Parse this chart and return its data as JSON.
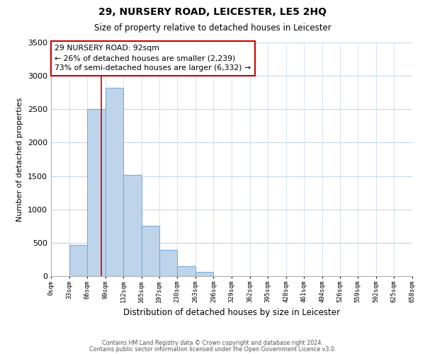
{
  "title": "29, NURSERY ROAD, LEICESTER, LE5 2HQ",
  "subtitle": "Size of property relative to detached houses in Leicester",
  "xlabel": "Distribution of detached houses by size in Leicester",
  "ylabel": "Number of detached properties",
  "bar_color": "#bed4ea",
  "bar_edge_color": "#7aaed4",
  "annotation_box_color": "#ffffff",
  "annotation_box_edge": "#cc0000",
  "marker_line_color": "#cc0000",
  "marker_value": 92,
  "annotation_title": "29 NURSERY ROAD: 92sqm",
  "annotation_line1": "← 26% of detached houses are smaller (2,239)",
  "annotation_line2": "73% of semi-detached houses are larger (6,332) →",
  "bin_edges": [
    0,
    33,
    66,
    99,
    132,
    165,
    197,
    230,
    263,
    296,
    329,
    362,
    395,
    428,
    461,
    494,
    526,
    559,
    592,
    625,
    658
  ],
  "bin_labels": [
    "0sqm",
    "33sqm",
    "66sqm",
    "99sqm",
    "132sqm",
    "165sqm",
    "197sqm",
    "230sqm",
    "263sqm",
    "296sqm",
    "329sqm",
    "362sqm",
    "395sqm",
    "428sqm",
    "461sqm",
    "494sqm",
    "526sqm",
    "559sqm",
    "592sqm",
    "625sqm",
    "658sqm"
  ],
  "counts": [
    0,
    470,
    2500,
    2820,
    1520,
    750,
    390,
    145,
    65,
    0,
    0,
    0,
    0,
    0,
    0,
    0,
    0,
    0,
    0,
    0
  ],
  "ylim": [
    0,
    3500
  ],
  "yticks": [
    0,
    500,
    1000,
    1500,
    2000,
    2500,
    3000,
    3500
  ],
  "footnote1": "Contains HM Land Registry data © Crown copyright and database right 2024.",
  "footnote2": "Contains public sector information licensed under the Open Government Licence v3.0.",
  "background_color": "#ffffff",
  "grid_color": "#c8d8e8"
}
